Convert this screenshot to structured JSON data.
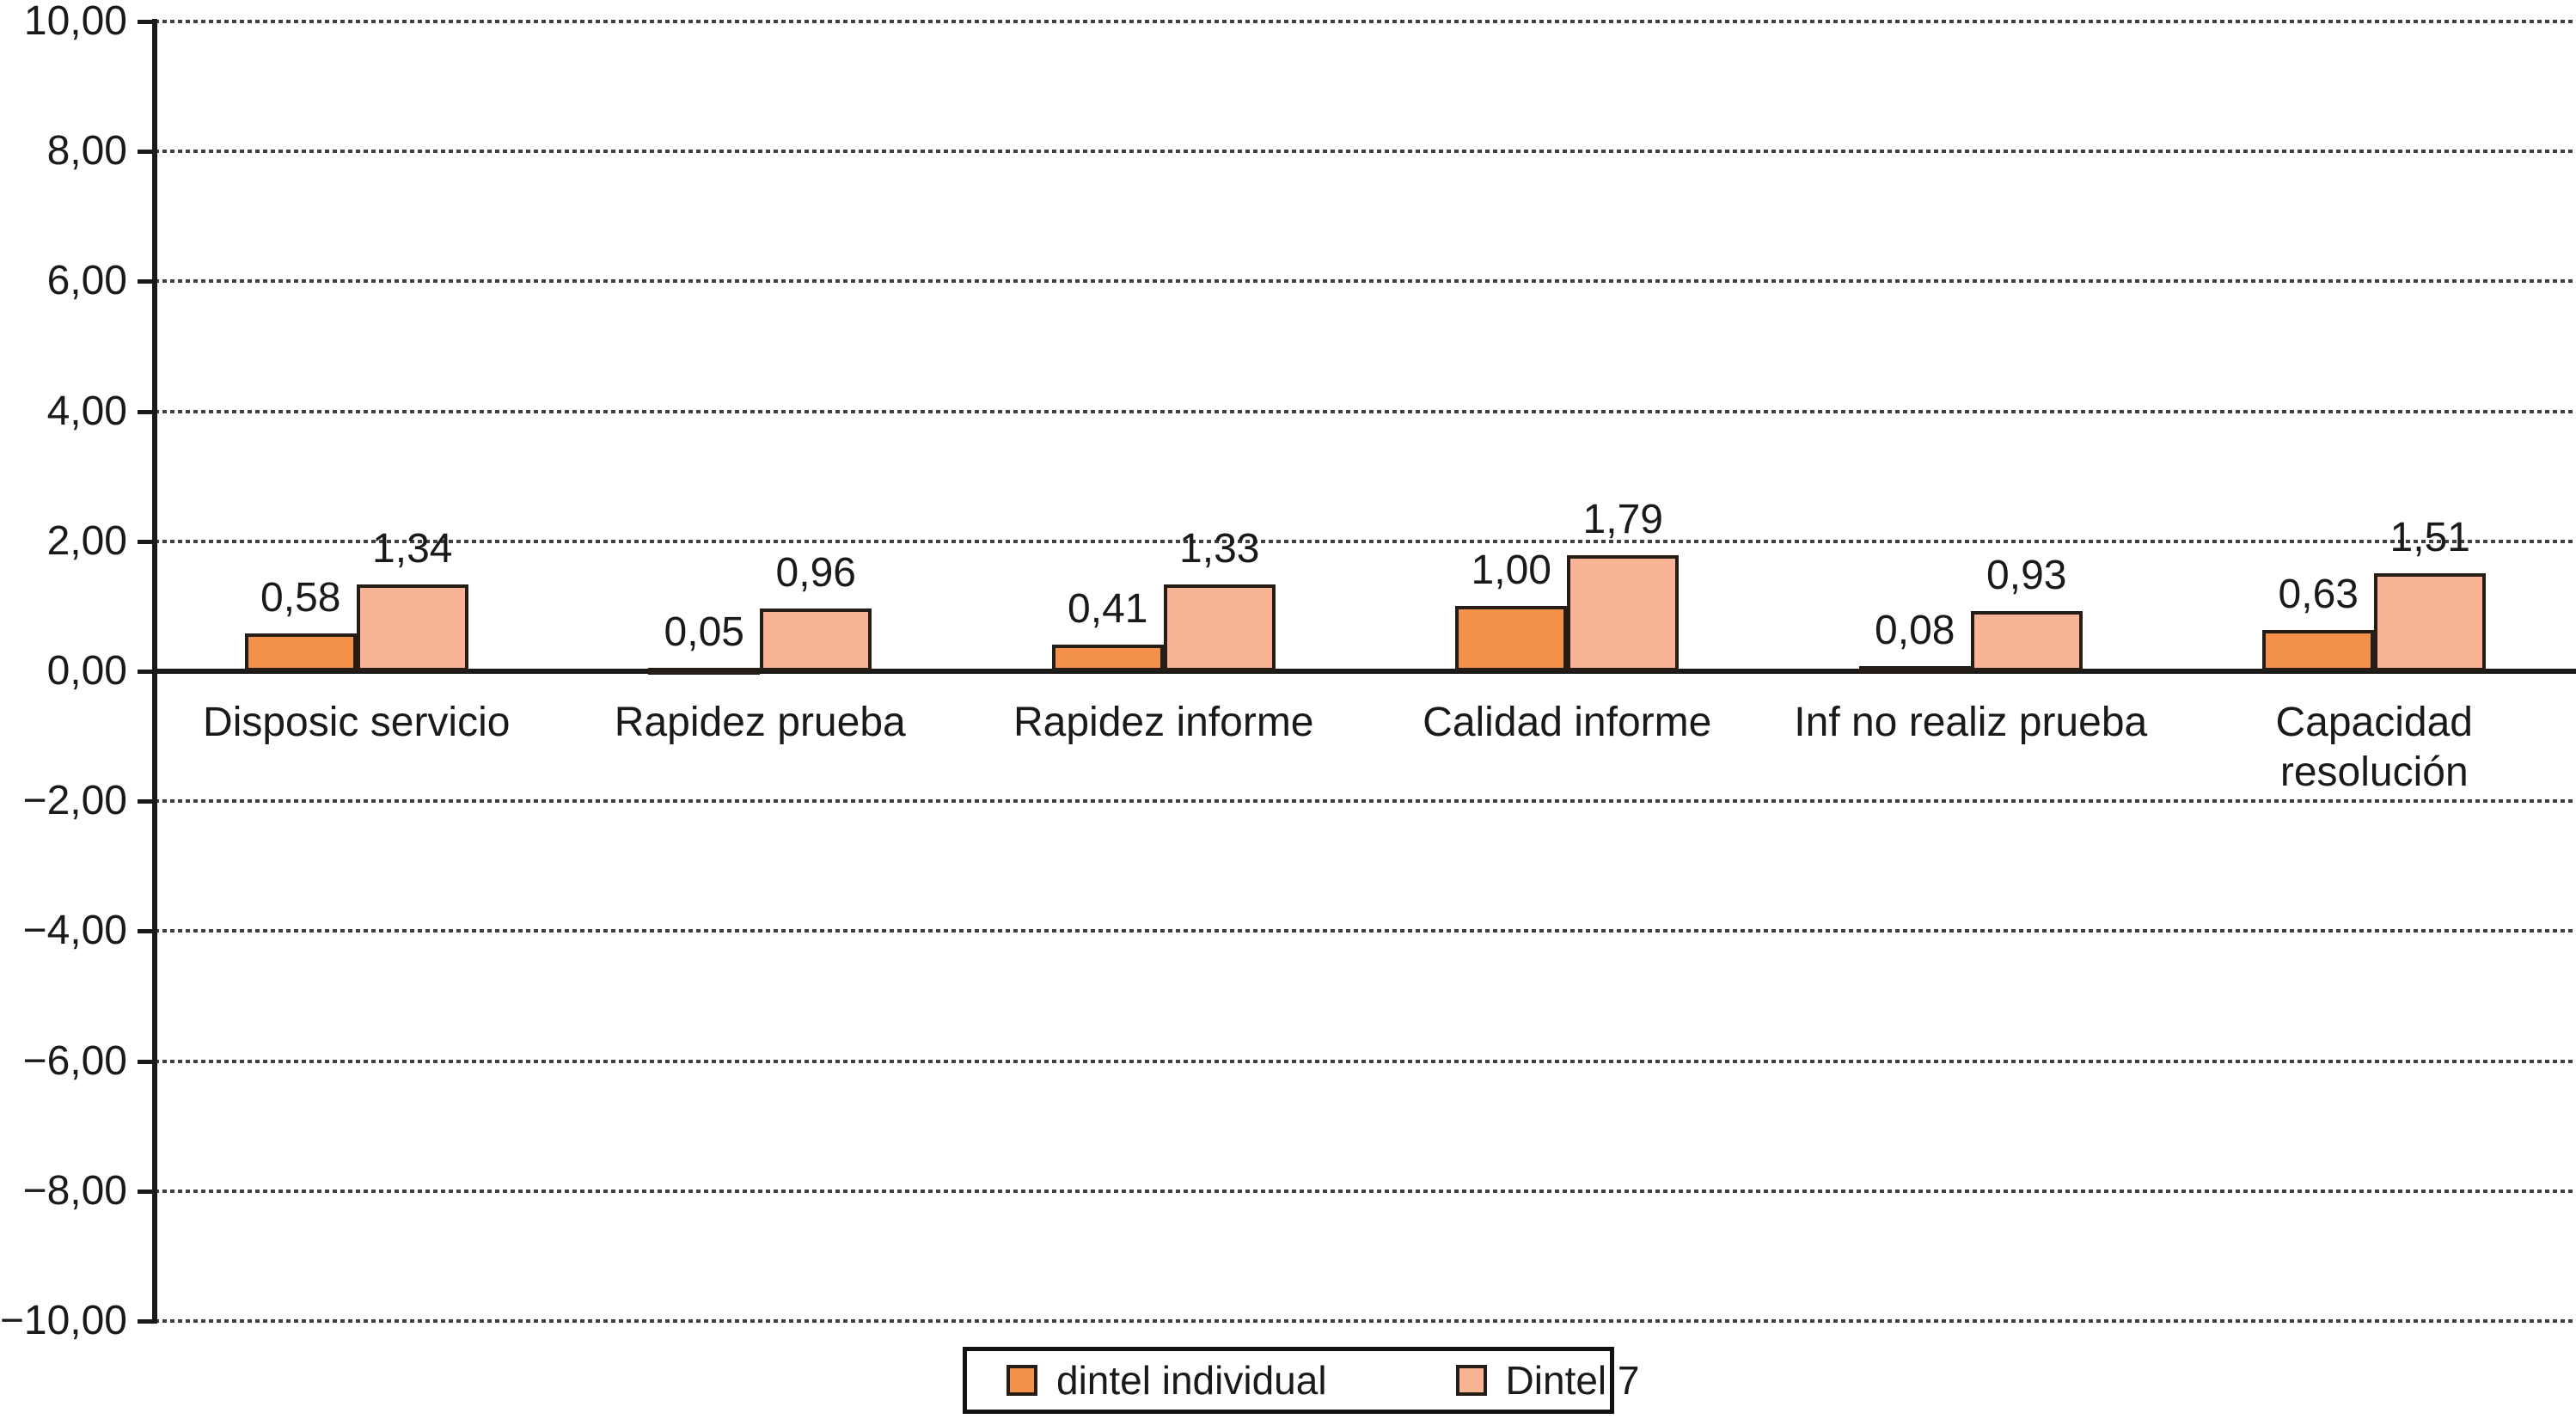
{
  "chart_data": {
    "type": "bar",
    "title": "",
    "xlabel": "",
    "ylabel": "",
    "categories": [
      "Disposic servicio",
      "Rapidez prueba",
      "Rapidez informe",
      "Calidad informe",
      "Inf no realiz prueba",
      "Capacidad resolución"
    ],
    "category_display": [
      "Disposic servicio",
      "Rapidez prueba",
      "Rapidez informe",
      "Calidad informe",
      "Inf no realiz prueba",
      "Capacidad\nresolución"
    ],
    "series": [
      {
        "name": "dintel individual",
        "color": "#F4914A",
        "values": [
          0.58,
          0.05,
          0.41,
          1.0,
          0.08,
          0.63
        ],
        "value_labels": [
          "0,58",
          "0,05",
          "0,41",
          "1,00",
          "0,08",
          "0,63"
        ]
      },
      {
        "name": "Dintel 7",
        "color": "#F8B494",
        "values": [
          1.34,
          0.96,
          1.33,
          1.79,
          0.93,
          1.51
        ],
        "value_labels": [
          "1,34",
          "0,96",
          "1,33",
          "1,79",
          "0,93",
          "1,51"
        ]
      }
    ],
    "ylim": [
      -10,
      10
    ],
    "ytick_values": [
      10,
      8,
      6,
      4,
      2,
      0,
      -2,
      -4,
      -6,
      -8,
      -10
    ],
    "ytick_labels": [
      "10,00",
      "8,00",
      "6,00",
      "4,00",
      "2,00",
      "0,00",
      "−2,00",
      "−4,00",
      "−6,00",
      "−8,00",
      "−10,00"
    ],
    "grid": "dashed horizontal lines at every tick, solid line at zero",
    "legend_position": "bottom center, boxed",
    "bar_outline_color": "#261e16",
    "axis_color": "#1a1a1a",
    "text_color": "#1a1a1a",
    "decimal_separator": ","
  },
  "legend": {
    "items": [
      {
        "label": "dintel individual"
      },
      {
        "label": "Dintel 7"
      }
    ]
  }
}
